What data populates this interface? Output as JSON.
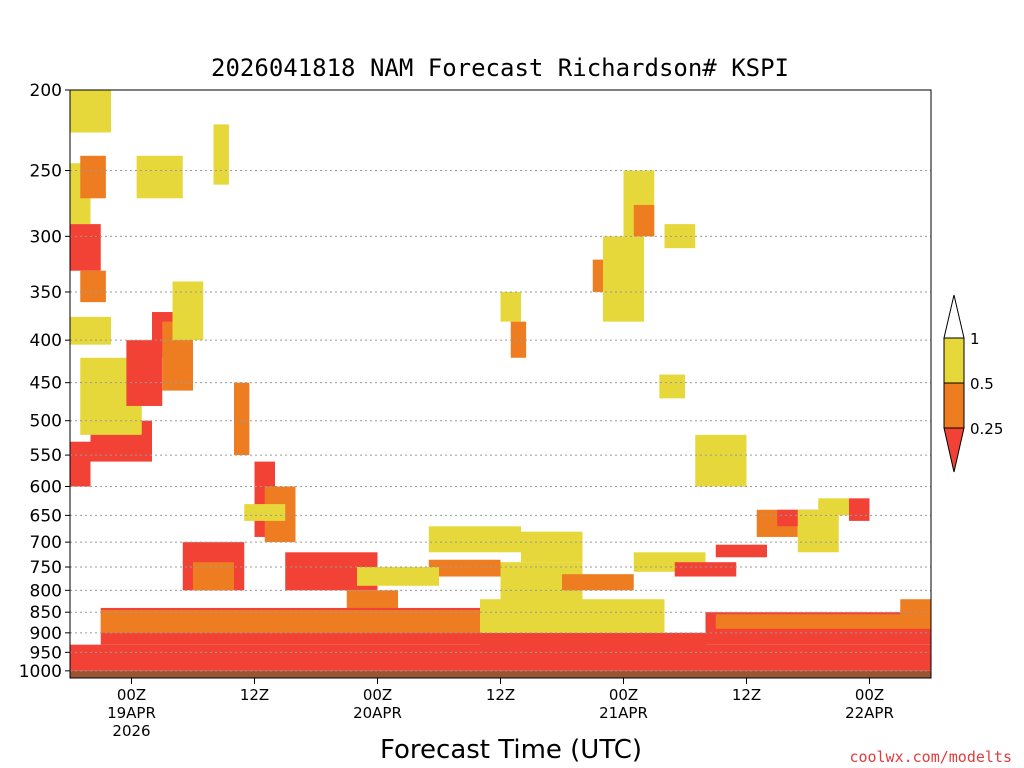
{
  "chart_data": {
    "type": "heatmap",
    "title": "2026041818 NAM Forecast Richardson# KSPI",
    "xlabel": "Forecast Time (UTC)",
    "ylabel": "",
    "watermark": "coolwx.com/modelts",
    "y_scale": "log-pressure",
    "ylim": [
      1020,
      200
    ],
    "y_ticks": [
      200,
      250,
      300,
      350,
      400,
      450,
      500,
      550,
      600,
      650,
      700,
      750,
      800,
      850,
      900,
      950,
      1000
    ],
    "x_range_hours": [
      0,
      84
    ],
    "x_ticks": [
      {
        "hour": 6,
        "lines": [
          "00Z",
          "19APR",
          "2026"
        ]
      },
      {
        "hour": 18,
        "lines": [
          "12Z"
        ]
      },
      {
        "hour": 30,
        "lines": [
          "00Z",
          "20APR"
        ]
      },
      {
        "hour": 42,
        "lines": [
          "12Z"
        ]
      },
      {
        "hour": 54,
        "lines": [
          "00Z",
          "21APR"
        ]
      },
      {
        "hour": 66,
        "lines": [
          "12Z"
        ]
      },
      {
        "hour": 78,
        "lines": [
          "00Z",
          "22APR"
        ]
      }
    ],
    "legend": {
      "placement": "right",
      "bins": [
        {
          "label": "1",
          "range": [
            0.5,
            1.0
          ],
          "color": "#e6d83a"
        },
        {
          "label": "0.5",
          "range": [
            0.25,
            0.5
          ],
          "color": "#ee7d22"
        },
        {
          "label": "0.25",
          "range": [
            0.0,
            0.25
          ],
          "color": "#f24236"
        }
      ],
      "upper_label": "1",
      "mid_label": "0.5",
      "lower_label": "0.25"
    },
    "colors": {
      "low": "#f24236",
      "mid": "#ee7d22",
      "high": "#e6d83a",
      "ground": "#9a5532"
    },
    "ground_level_hpa": 1000,
    "regions": [
      {
        "cat": "high",
        "t": [
          0,
          4
        ],
        "p": [
          200,
          225
        ]
      },
      {
        "cat": "high",
        "t": [
          0,
          2
        ],
        "p": [
          245,
          290
        ]
      },
      {
        "cat": "low",
        "t": [
          0,
          3
        ],
        "p": [
          290,
          330
        ]
      },
      {
        "cat": "mid",
        "t": [
          1,
          3.5
        ],
        "p": [
          330,
          360
        ]
      },
      {
        "cat": "high",
        "t": [
          0,
          4
        ],
        "p": [
          375,
          405
        ]
      },
      {
        "cat": "high",
        "t": [
          6.5,
          11
        ],
        "p": [
          240,
          270
        ]
      },
      {
        "cat": "mid",
        "t": [
          1,
          3.5
        ],
        "p": [
          240,
          270
        ]
      },
      {
        "cat": "high",
        "t": [
          14,
          15.5
        ],
        "p": [
          220,
          260
        ]
      },
      {
        "cat": "low",
        "t": [
          0,
          2
        ],
        "p": [
          530,
          600
        ]
      },
      {
        "cat": "low",
        "t": [
          2,
          8
        ],
        "p": [
          500,
          560
        ]
      },
      {
        "cat": "high",
        "t": [
          1,
          7
        ],
        "p": [
          420,
          520
        ]
      },
      {
        "cat": "low",
        "t": [
          5.5,
          9
        ],
        "p": [
          400,
          480
        ]
      },
      {
        "cat": "low",
        "t": [
          8,
          10
        ],
        "p": [
          370,
          420
        ]
      },
      {
        "cat": "mid",
        "t": [
          9,
          12
        ],
        "p": [
          380,
          460
        ]
      },
      {
        "cat": "high",
        "t": [
          10,
          13
        ],
        "p": [
          340,
          400
        ]
      },
      {
        "cat": "mid",
        "t": [
          16,
          17.5
        ],
        "p": [
          450,
          550
        ]
      },
      {
        "cat": "low",
        "t": [
          18,
          20
        ],
        "p": [
          560,
          690
        ]
      },
      {
        "cat": "mid",
        "t": [
          19,
          22
        ],
        "p": [
          600,
          700
        ]
      },
      {
        "cat": "low",
        "t": [
          11,
          17
        ],
        "p": [
          700,
          800
        ]
      },
      {
        "cat": "low",
        "t": [
          21,
          30
        ],
        "p": [
          720,
          800
        ]
      },
      {
        "cat": "mid",
        "t": [
          27,
          32
        ],
        "p": [
          800,
          850
        ]
      },
      {
        "cat": "high",
        "t": [
          17,
          21
        ],
        "p": [
          630,
          660
        ]
      },
      {
        "cat": "high",
        "t": [
          35,
          44
        ],
        "p": [
          670,
          720
        ]
      },
      {
        "cat": "mid",
        "t": [
          35,
          42
        ],
        "p": [
          735,
          770
        ]
      },
      {
        "cat": "high",
        "t": [
          42,
          50
        ],
        "p": [
          740,
          830
        ]
      },
      {
        "cat": "high",
        "t": [
          44,
          50
        ],
        "p": [
          680,
          740
        ]
      },
      {
        "cat": "mid",
        "t": [
          48,
          55
        ],
        "p": [
          765,
          800
        ]
      },
      {
        "cat": "high",
        "t": [
          55,
          62
        ],
        "p": [
          720,
          760
        ]
      },
      {
        "cat": "low",
        "t": [
          59,
          65
        ],
        "p": [
          740,
          770
        ]
      },
      {
        "cat": "low",
        "t": [
          63,
          68
        ],
        "p": [
          705,
          730
        ]
      },
      {
        "cat": "high",
        "t": [
          61,
          66
        ],
        "p": [
          520,
          600
        ]
      },
      {
        "cat": "mid",
        "t": [
          67,
          71
        ],
        "p": [
          640,
          690
        ]
      },
      {
        "cat": "low",
        "t": [
          69,
          73
        ],
        "p": [
          640,
          670
        ]
      },
      {
        "cat": "high",
        "t": [
          71,
          75
        ],
        "p": [
          640,
          720
        ]
      },
      {
        "cat": "mid",
        "t": [
          51,
          54
        ],
        "p": [
          320,
          350
        ]
      },
      {
        "cat": "high",
        "t": [
          52,
          56
        ],
        "p": [
          300,
          380
        ]
      },
      {
        "cat": "high",
        "t": [
          54,
          57
        ],
        "p": [
          250,
          300
        ]
      },
      {
        "cat": "mid",
        "t": [
          55,
          57
        ],
        "p": [
          275,
          300
        ]
      },
      {
        "cat": "high",
        "t": [
          58,
          61
        ],
        "p": [
          290,
          310
        ]
      },
      {
        "cat": "high",
        "t": [
          57.5,
          60
        ],
        "p": [
          440,
          470
        ]
      },
      {
        "cat": "high",
        "t": [
          42,
          44
        ],
        "p": [
          350,
          380
        ]
      },
      {
        "cat": "mid",
        "t": [
          43,
          44.5
        ],
        "p": [
          380,
          420
        ]
      },
      {
        "cat": "low",
        "t": [
          0,
          84
        ],
        "p": [
          930,
          1000
        ]
      },
      {
        "cat": "low",
        "t": [
          3,
          40
        ],
        "p": [
          840,
          930
        ]
      },
      {
        "cat": "mid",
        "t": [
          3,
          40
        ],
        "p": [
          845,
          900
        ]
      },
      {
        "cat": "low",
        "t": [
          62,
          84
        ],
        "p": [
          850,
          930
        ]
      },
      {
        "cat": "mid",
        "t": [
          63,
          84
        ],
        "p": [
          855,
          890
        ]
      },
      {
        "cat": "low",
        "t": [
          40,
          62
        ],
        "p": [
          900,
          960
        ]
      },
      {
        "cat": "high",
        "t": [
          40,
          58
        ],
        "p": [
          820,
          900
        ]
      },
      {
        "cat": "high",
        "t": [
          28,
          36
        ],
        "p": [
          750,
          790
        ]
      },
      {
        "cat": "mid",
        "t": [
          12,
          16
        ],
        "p": [
          740,
          800
        ]
      },
      {
        "cat": "high",
        "t": [
          73,
          76
        ],
        "p": [
          620,
          650
        ]
      },
      {
        "cat": "low",
        "t": [
          76,
          78
        ],
        "p": [
          620,
          660
        ]
      },
      {
        "cat": "mid",
        "t": [
          81,
          84
        ],
        "p": [
          820,
          860
        ]
      }
    ]
  }
}
